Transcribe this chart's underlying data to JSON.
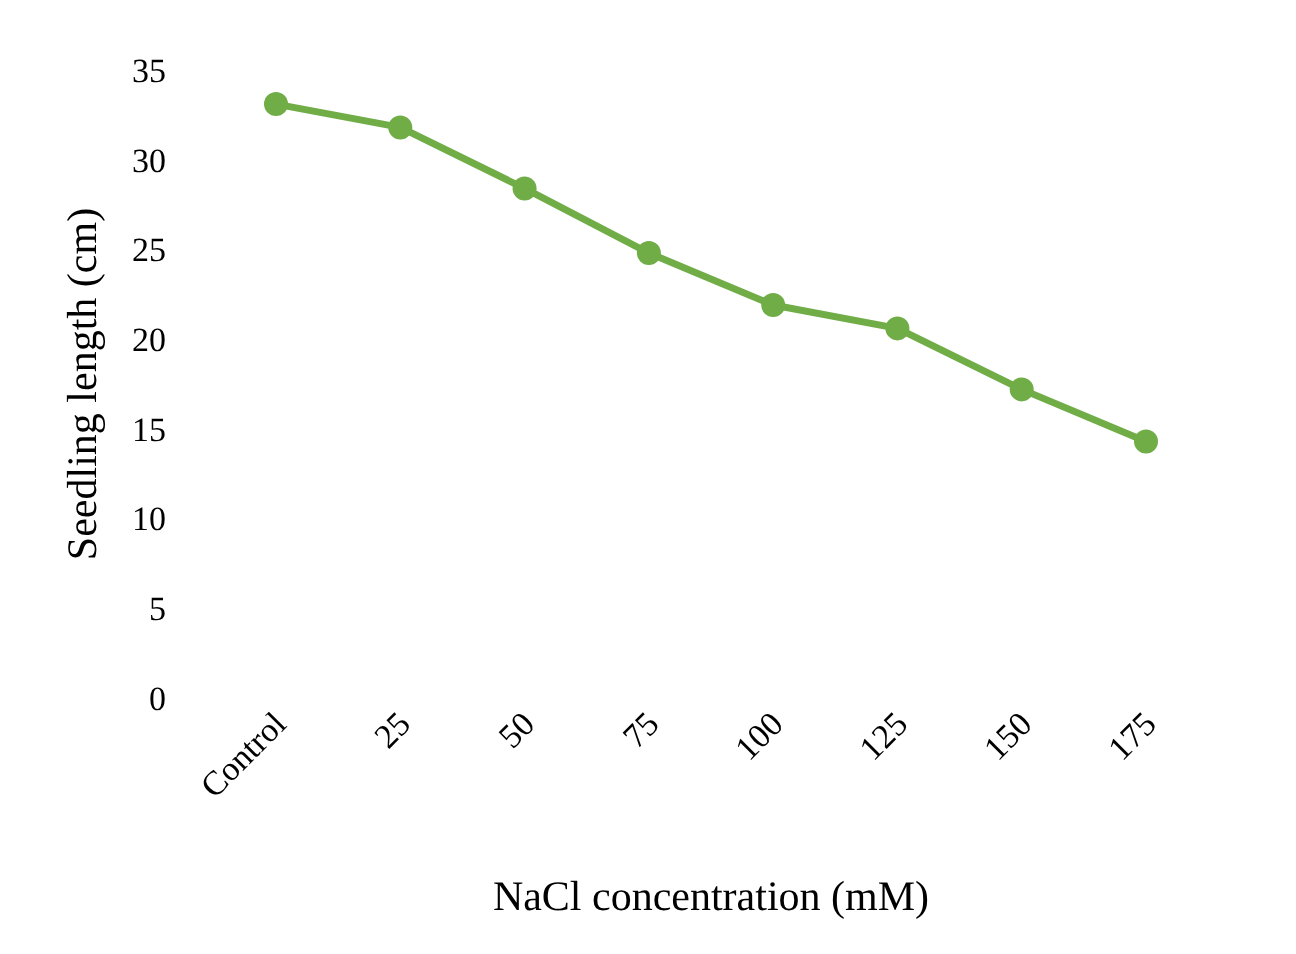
{
  "chart_data": {
    "type": "line",
    "xlabel": "NaCl concentration (mM)",
    "ylabel": "Seedling length (cm)",
    "categories": [
      "Control",
      "25",
      "50",
      "75",
      "100",
      "125",
      "150",
      "175"
    ],
    "series": [
      {
        "color": "#70ad47",
        "values": [
          33.1,
          31.8,
          28.4,
          24.8,
          21.9,
          20.6,
          17.2,
          14.3
        ]
      }
    ],
    "ylim": [
      0,
      35
    ],
    "yticks": [
      0,
      5,
      10,
      15,
      20,
      25,
      30,
      35
    ],
    "grid": false,
    "marker": "circle",
    "line_style": "solid"
  }
}
